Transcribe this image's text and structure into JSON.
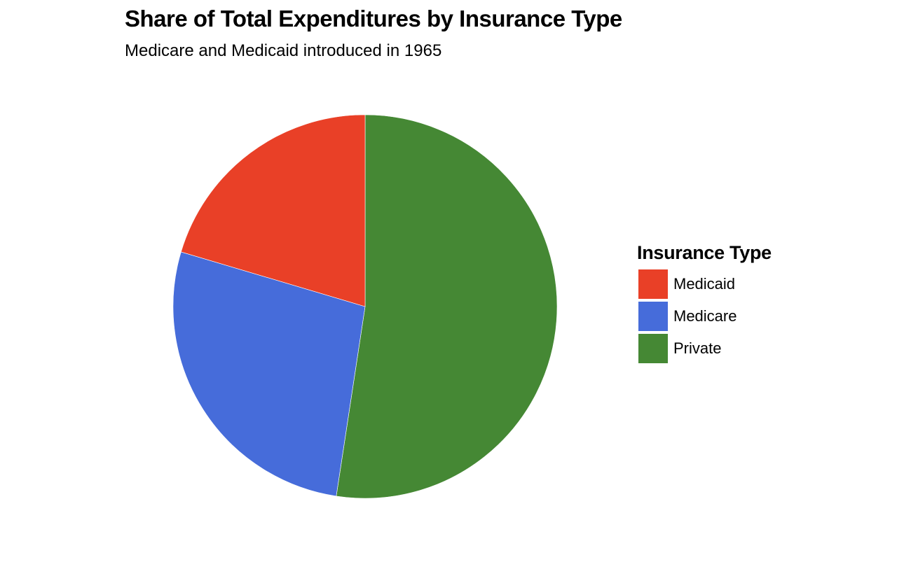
{
  "chart_data": {
    "type": "pie",
    "title": "Share of Total Expenditures by Insurance Type",
    "subtitle": "Medicare and Medicaid introduced in 1965",
    "legend_title": "Insurance Type",
    "legend_position": "right",
    "categories": [
      "Medicaid",
      "Medicare",
      "Private"
    ],
    "values": [
      20.4,
      27.2,
      52.4
    ],
    "colors": [
      "#E94027",
      "#466CDA",
      "#458834"
    ],
    "start_angle_deg": 0,
    "direction": "counterclockwise-from-top for Medicaid; Private clockwise from top"
  },
  "title": "Share of Total Expenditures by Insurance Type",
  "subtitle": "Medicare and Medicaid introduced in 1965",
  "legend": {
    "title": "Insurance Type",
    "items": [
      {
        "label": "Medicaid",
        "color": "#E94027"
      },
      {
        "label": "Medicare",
        "color": "#466CDA"
      },
      {
        "label": "Private",
        "color": "#458834"
      }
    ]
  }
}
